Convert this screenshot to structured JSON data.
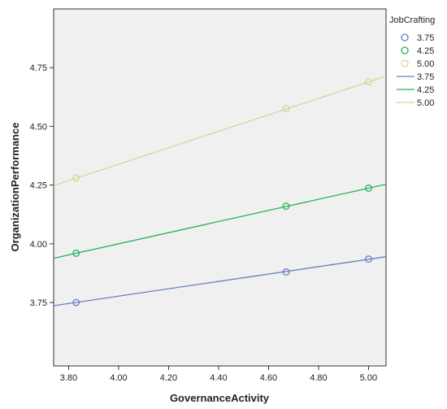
{
  "chart_data": {
    "type": "scatter",
    "xlabel": "GovernanceActivity",
    "ylabel": "OrganizationPerformance",
    "xlim": [
      3.74,
      5.07
    ],
    "ylim": [
      3.48,
      5.0
    ],
    "xticks": [
      "3.80",
      "4.00",
      "4.20",
      "4.40",
      "4.60",
      "4.80",
      "5.00"
    ],
    "yticks": [
      "3.75",
      "4.00",
      "4.25",
      "4.50",
      "4.75"
    ],
    "grid": false,
    "legend": {
      "title": "JobCrafting",
      "position": "right",
      "marker_entries": [
        "3.75",
        "4.25",
        "5.00"
      ],
      "line_entries": [
        "3.75",
        "4.25",
        "5.00"
      ]
    },
    "series": [
      {
        "name": "3.75",
        "color": "#6a80c0",
        "x": [
          3.83,
          4.67,
          5.0
        ],
        "y": [
          3.75,
          3.88,
          3.935
        ],
        "fit": {
          "slope": 0.157,
          "intercept": 3.149
        }
      },
      {
        "name": "4.25",
        "color": "#21b35a",
        "x": [
          3.83,
          4.67,
          5.0
        ],
        "y": [
          3.96,
          4.16,
          4.237
        ],
        "fit": {
          "slope": 0.237,
          "intercept": 3.052
        }
      },
      {
        "name": "5.00",
        "color": "#d8d49a",
        "x": [
          3.83,
          4.67,
          5.0
        ],
        "y": [
          4.28,
          4.575,
          4.69
        ],
        "fit": {
          "slope": 0.35,
          "intercept": 2.939
        }
      }
    ]
  }
}
